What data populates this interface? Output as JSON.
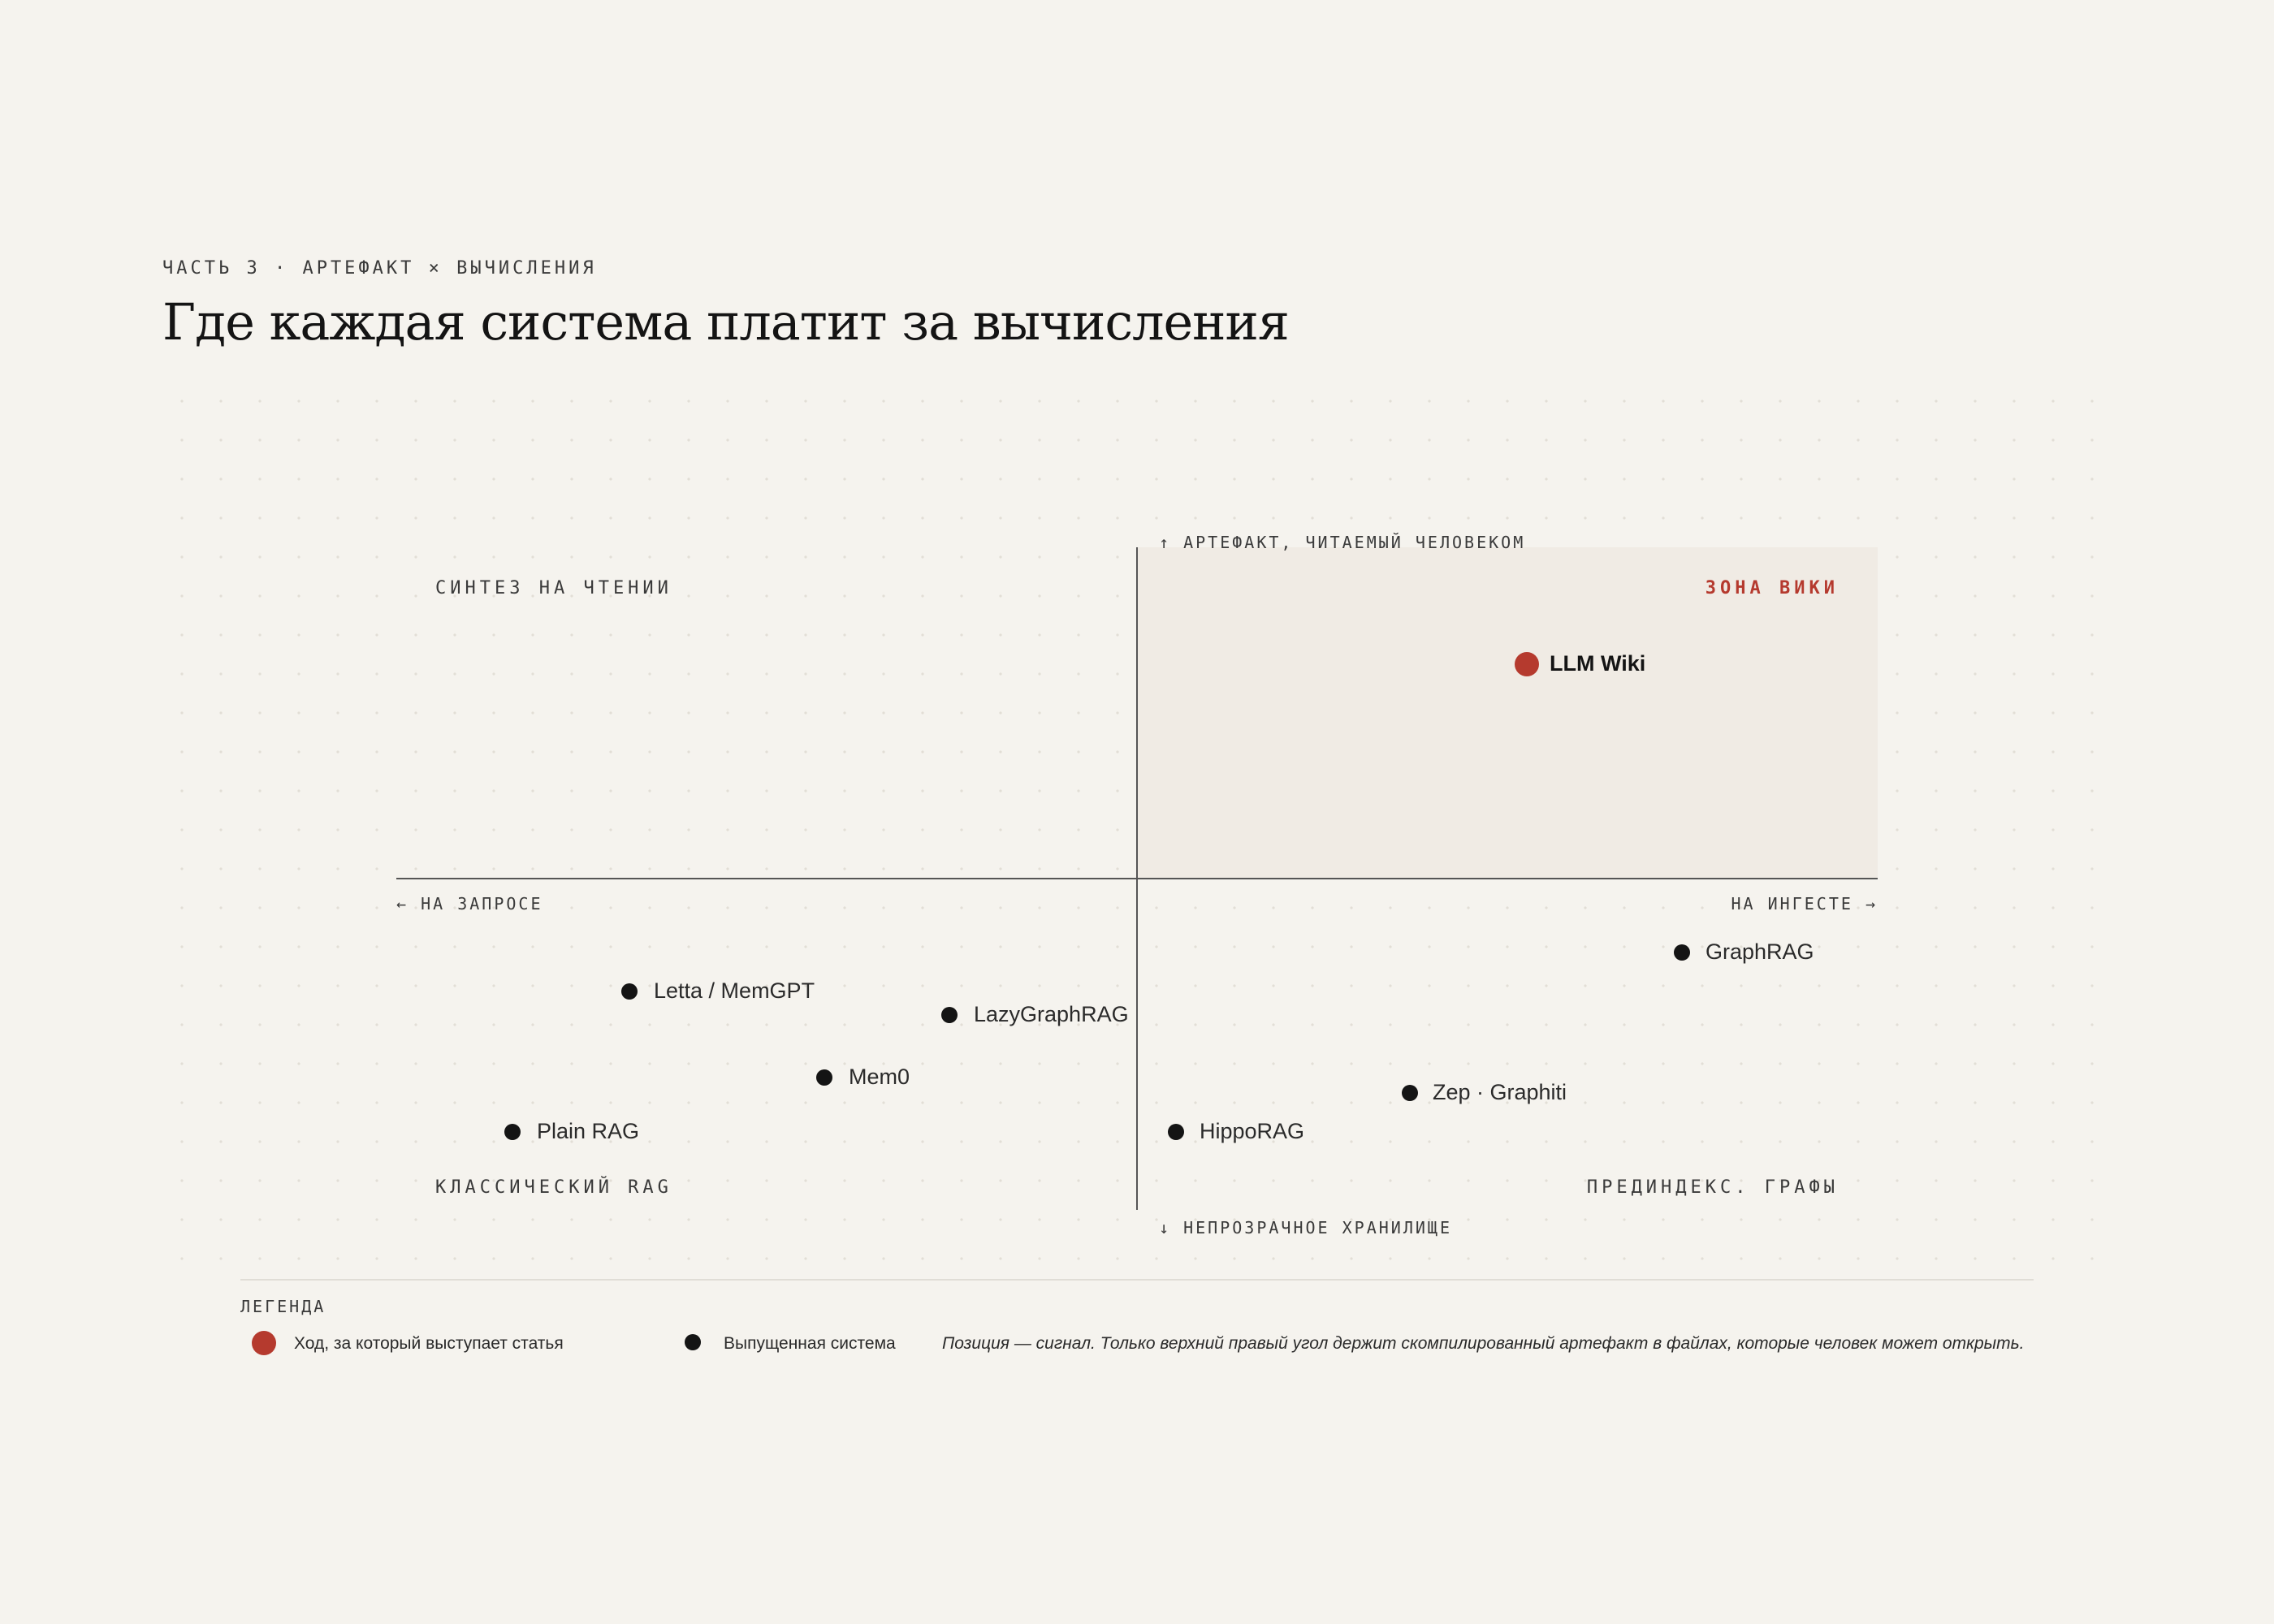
{
  "header": {
    "eyebrow": "ЧАСТЬ 3 · АРТЕФАКТ × ВЫЧИСЛЕНИЯ",
    "title": "Где каждая система платит за вычисления"
  },
  "axes": {
    "top": "↑ АРТЕФАКТ, ЧИТАЕМЫЙ ЧЕЛОВЕКОМ",
    "bottom": "↓ НЕПРОЗРАЧНОЕ ХРАНИЛИЩЕ",
    "left": "← НА ЗАПРОСЕ",
    "right": "НА ИНГЕСТЕ →"
  },
  "quadrants": {
    "top_left": "СИНТЕЗ НА ЧТЕНИИ",
    "top_right": "ЗОНА ВИКИ",
    "bottom_left": "КЛАССИЧЕСКИЙ RAG",
    "bottom_right": "ПРЕДИНДЕКС. ГРАФЫ"
  },
  "points": [
    {
      "label": "LLM Wiki",
      "kind": "proposed"
    },
    {
      "label": "GraphRAG",
      "kind": "shipped"
    },
    {
      "label": "Letta / MemGPT",
      "kind": "shipped"
    },
    {
      "label": "LazyGraphRAG",
      "kind": "shipped"
    },
    {
      "label": "Mem0",
      "kind": "shipped"
    },
    {
      "label": "Zep · Graphiti",
      "kind": "shipped"
    },
    {
      "label": "Plain RAG",
      "kind": "shipped"
    },
    {
      "label": "HippoRAG",
      "kind": "shipped"
    }
  ],
  "legend": {
    "title": "ЛЕГЕНДА",
    "proposed": "Ход, за который выступает статья",
    "shipped": "Выпущенная система",
    "note": "Позиция — сигнал. Только верхний правый угол держит скомпилированный артефакт в файлах, которые человек может открыть."
  },
  "colors": {
    "accent": "#b53a2e",
    "ink": "#141414",
    "background": "#f5f3ee",
    "zone": "#f0ebe4"
  }
}
